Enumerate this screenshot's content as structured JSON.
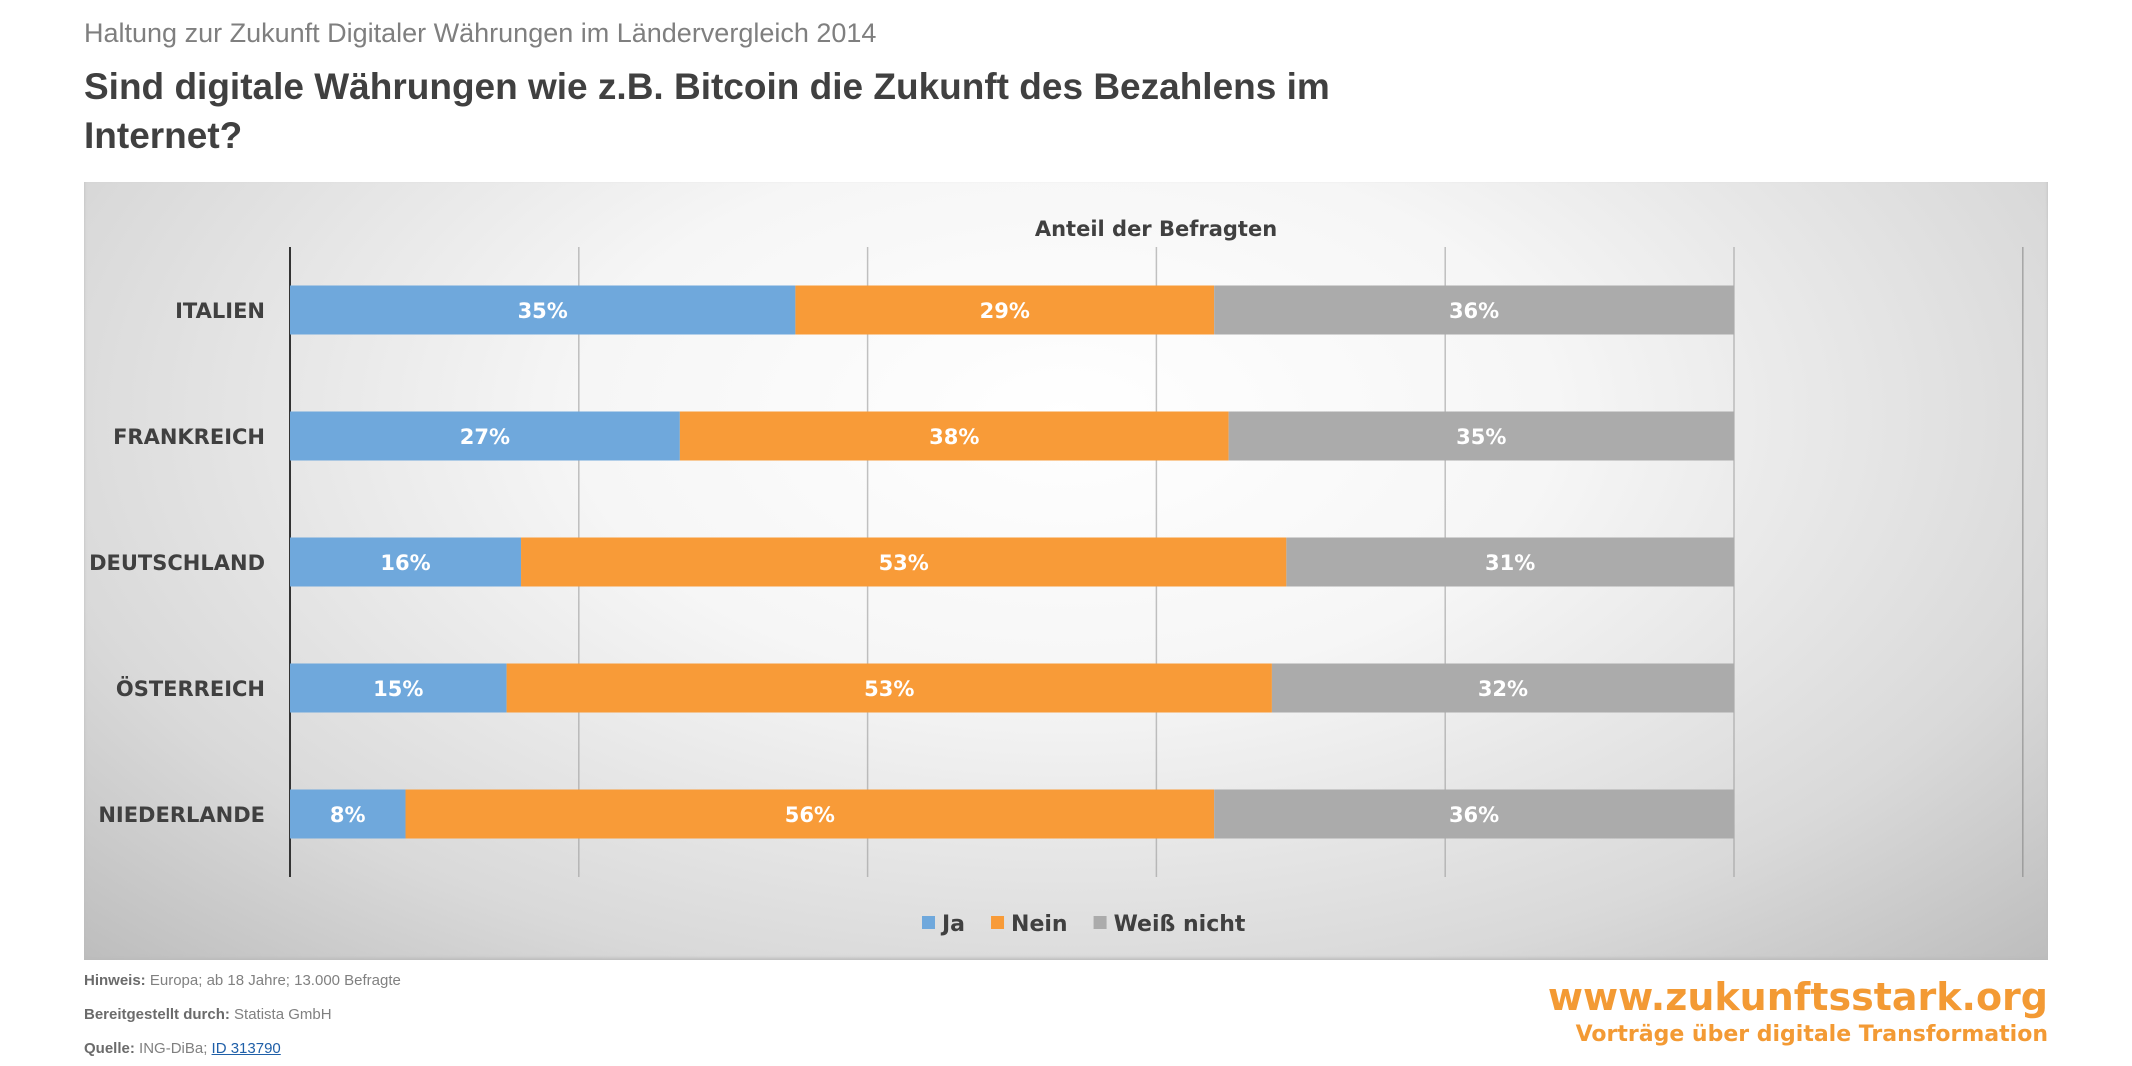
{
  "header": {
    "subtitle": "Haltung zur Zukunft Digitaler Währungen im Ländervergleich 2014",
    "title": "Sind digitale Währungen wie z.B. Bitcoin die Zukunft des Bezahlens im Internet?"
  },
  "chart_data": {
    "type": "bar",
    "orientation": "horizontal",
    "stacked": true,
    "title": "Anteil der Befragten",
    "categories": [
      "ITALIEN",
      "FRANKREICH",
      "DEUTSCHLAND",
      "ÖSTERREICH",
      "NIEDERLANDE"
    ],
    "series": [
      {
        "name": "Ja",
        "color": "#6fa8dc",
        "values": [
          35,
          27,
          16,
          15,
          8
        ],
        "labels": [
          "35%",
          "27%",
          "16%",
          "15%",
          "8%"
        ]
      },
      {
        "name": "Nein",
        "color": "#f89b38",
        "values": [
          29,
          38,
          53,
          53,
          56
        ],
        "labels": [
          "29%",
          "38%",
          "53%",
          "53%",
          "56%"
        ]
      },
      {
        "name": "Weiß nicht",
        "color": "#ababab",
        "values": [
          36,
          35,
          31,
          32,
          36
        ],
        "labels": [
          "36%",
          "35%",
          "31%",
          "32%",
          "36%"
        ]
      }
    ],
    "xlim": [
      0,
      120
    ],
    "grid": true,
    "legend": "bottom"
  },
  "footer": {
    "note_label": "Hinweis:",
    "note": "Europa; ab 18 Jahre; 13.000 Befragte",
    "provided_label": "Bereitgestellt durch:",
    "provided": "Statista GmbH",
    "source_label": "Quelle:",
    "source": "ING-DiBa;",
    "source_link": "ID 313790"
  },
  "logo": {
    "url": "www.zukunftsstark.org",
    "tagline": "Vorträge über digitale Transformation",
    "color": "#f39a34"
  }
}
